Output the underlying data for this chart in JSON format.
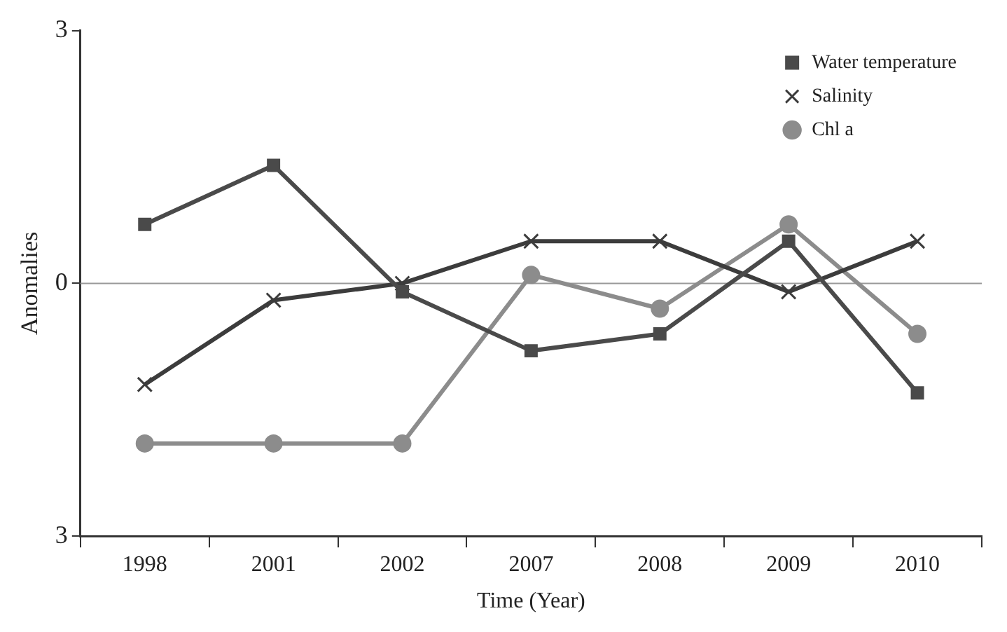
{
  "chart_data": {
    "type": "line",
    "xlabel": "Time (Year)",
    "ylabel": "Anomalies",
    "categories": [
      "1998",
      "2001",
      "2002",
      "2007",
      "2008",
      "2009",
      "2010"
    ],
    "series": [
      {
        "name": "Water temperature",
        "color": "#4a4a4a",
        "marker": "square",
        "values": [
          0.7,
          1.4,
          -0.1,
          -0.8,
          -0.6,
          0.5,
          -1.3
        ]
      },
      {
        "name": "Salinity",
        "color": "#3c3c3c",
        "marker": "cross",
        "values": [
          -1.2,
          -0.2,
          0,
          0.5,
          0.5,
          -0.1,
          0.5
        ]
      },
      {
        "name": "Chl a",
        "color": "#8c8c8c",
        "marker": "circle",
        "values": [
          -1.9,
          -1.9,
          -1.9,
          0.1,
          -0.3,
          0.7,
          -0.6
        ]
      }
    ],
    "ylim": [
      -3,
      3
    ],
    "yticks": [
      {
        "value": -3,
        "label": "3"
      },
      0,
      3
    ],
    "ref_lines": [
      {
        "axis": "y",
        "value": 0,
        "color": "#999999"
      }
    ],
    "grid": false,
    "legend": "top right",
    "line_style": "solid"
  }
}
